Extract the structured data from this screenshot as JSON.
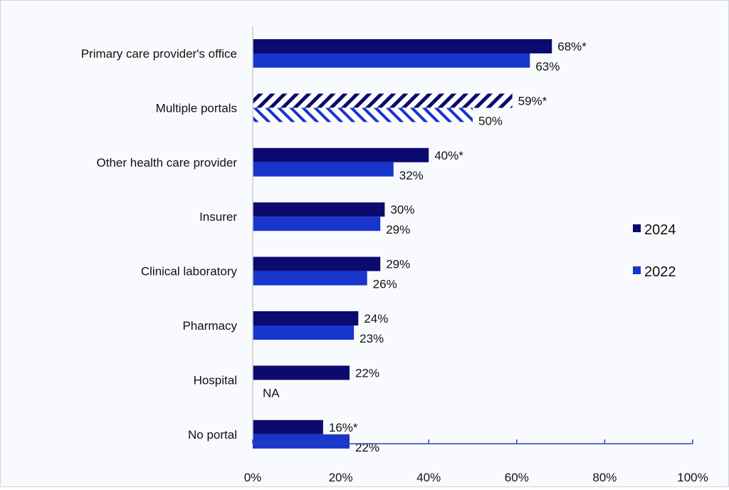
{
  "chart_data": {
    "type": "bar",
    "orientation": "horizontal",
    "categories": [
      "Primary care provider's office",
      "Multiple portals",
      "Other health care provider",
      "Insurer",
      "Clinical laboratory",
      "Pharmacy",
      "Hospital",
      "No portal"
    ],
    "series": [
      {
        "name": "2024",
        "color": "#0b0a6e",
        "values": [
          68,
          59,
          40,
          30,
          29,
          24,
          22,
          16
        ],
        "labels": [
          "68%*",
          "59%*",
          "40%*",
          "30%",
          "29%",
          "24%",
          "22%",
          "16%*"
        ]
      },
      {
        "name": "2022",
        "color": "#1835cc",
        "values": [
          63,
          50,
          32,
          29,
          26,
          23,
          null,
          22
        ],
        "labels": [
          "63%",
          "50%",
          "32%",
          "29%",
          "26%",
          "23%",
          "NA",
          "22%"
        ]
      }
    ],
    "hatched_categories": [
      "Multiple portals"
    ],
    "xlim": [
      0,
      100
    ],
    "xticks": [
      "0%",
      "20%",
      "40%",
      "60%",
      "80%",
      "100%"
    ],
    "legend_placement": "right",
    "grid": false
  }
}
